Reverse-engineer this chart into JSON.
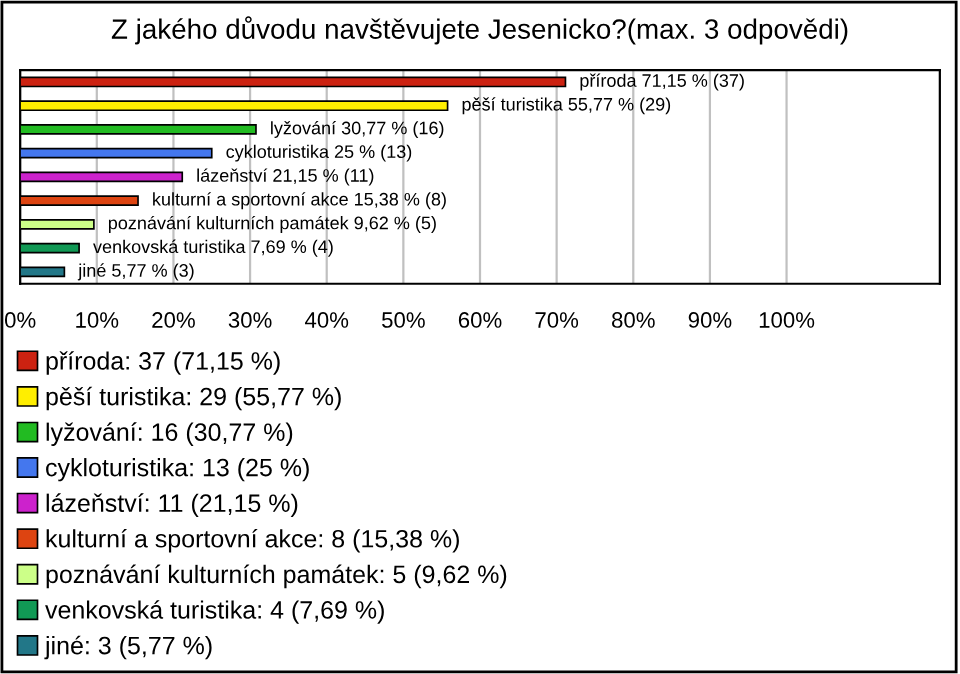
{
  "chart_data": {
    "type": "bar",
    "orientation": "horizontal",
    "title": "Z jakého důvodu navštěvujete Jesenicko?(max. 3 odpovědi)",
    "categories": [
      null,
      null,
      null,
      null,
      null,
      null,
      null,
      null,
      null
    ],
    "series": [
      {
        "name": "příroda: 37 (71,15 %)",
        "color": "#cc2211",
        "values": [
          71.15,
          null,
          null,
          null,
          null,
          null,
          null,
          null,
          null
        ],
        "value_labels": [
          "příroda 71,15 % (37)",
          null,
          null,
          null,
          null,
          null,
          null,
          null,
          null
        ]
      },
      {
        "name": "pěší turistika: 29 (55,77 %)",
        "color": "#ffee00",
        "values": [
          null,
          55.77,
          null,
          null,
          null,
          null,
          null,
          null,
          null
        ],
        "value_labels": [
          null,
          "pěší turistika 55,77 % (29)",
          null,
          null,
          null,
          null,
          null,
          null,
          null
        ]
      },
      {
        "name": "lyžování: 16 (30,77 %)",
        "color": "#22bb22",
        "values": [
          null,
          null,
          30.77,
          null,
          null,
          null,
          null,
          null,
          null
        ],
        "value_labels": [
          null,
          null,
          "lyžování 30,77 % (16)",
          null,
          null,
          null,
          null,
          null,
          null
        ]
      },
      {
        "name": "cykloturistika: 13 (25 %)",
        "color": "#4477ee",
        "values": [
          null,
          null,
          null,
          25,
          null,
          null,
          null,
          null,
          null
        ],
        "value_labels": [
          null,
          null,
          null,
          "cykloturistika 25 % (13)",
          null,
          null,
          null,
          null,
          null
        ]
      },
      {
        "name": "lázeňství: 11 (21,15 %)",
        "color": "#cc22cc",
        "values": [
          null,
          null,
          null,
          null,
          21.15,
          null,
          null,
          null,
          null
        ],
        "value_labels": [
          null,
          null,
          null,
          null,
          "lázeňství 21,15 % (11)",
          null,
          null,
          null,
          null
        ]
      },
      {
        "name": "kulturní a sportovní akce: 8 (15,38 %)",
        "color": "#dd4411",
        "values": [
          null,
          null,
          null,
          null,
          null,
          15.38,
          null,
          null,
          null
        ],
        "value_labels": [
          null,
          null,
          null,
          null,
          null,
          "kulturní a sportovní akce 15,38 % (8)",
          null,
          null,
          null
        ]
      },
      {
        "name": "poznávání kulturních památek: 5 (9,62 %)",
        "color": "#ccff88",
        "values": [
          null,
          null,
          null,
          null,
          null,
          null,
          9.62,
          null,
          null
        ],
        "value_labels": [
          null,
          null,
          null,
          null,
          null,
          null,
          "poznávání kulturních památek 9,62 % (5)",
          null,
          null
        ]
      },
      {
        "name": "venkovská turistika: 4 (7,69 %)",
        "color": "#119955",
        "values": [
          null,
          null,
          null,
          null,
          null,
          null,
          null,
          7.69,
          null
        ],
        "value_labels": [
          null,
          null,
          null,
          null,
          null,
          null,
          null,
          "venkovská turistika 7,69 % (4)",
          null
        ]
      },
      {
        "name": "jiné: 3 (5,77 %)",
        "color": "#227788",
        "values": [
          null,
          null,
          null,
          null,
          null,
          null,
          null,
          null,
          5.77
        ],
        "value_labels": [
          null,
          null,
          null,
          null,
          null,
          null,
          null,
          null,
          "jiné 5,77 % (3)"
        ]
      }
    ],
    "xlim": [
      0,
      120
    ],
    "xticks": [
      {
        "value": 0,
        "label": "0%"
      },
      {
        "value": 10,
        "label": "10%"
      },
      {
        "value": 20,
        "label": "20%"
      },
      {
        "value": 30,
        "label": "30%"
      },
      {
        "value": 40,
        "label": "40%"
      },
      {
        "value": 50,
        "label": "50%"
      },
      {
        "value": 60,
        "label": "60%"
      },
      {
        "value": 70,
        "label": "70%"
      },
      {
        "value": 80,
        "label": "80%"
      },
      {
        "value": 90,
        "label": "90%"
      },
      {
        "value": 100,
        "label": "100%"
      }
    ],
    "grid": "x",
    "legend": "bottom"
  }
}
